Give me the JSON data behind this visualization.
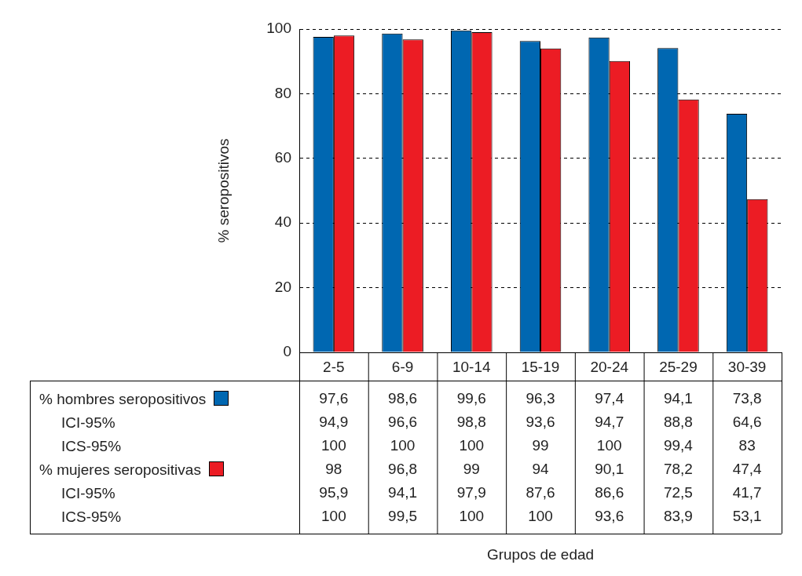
{
  "chart_data": {
    "type": "bar",
    "ylabel": "% seropositivos",
    "categories": [
      "2-5",
      "6-9",
      "10-14",
      "15-19",
      "20-24",
      "25-29",
      "30-39"
    ],
    "series": [
      {
        "name": "% hombres seropositivos",
        "color": "#0067b1",
        "values": [
          97.6,
          98.6,
          99.6,
          96.3,
          97.4,
          94.1,
          73.8
        ],
        "value_labels": [
          "97,6",
          "98,6",
          "99,6",
          "96,3",
          "97,4",
          "94,1",
          "73,8"
        ]
      },
      {
        "name": "% mujeres seropositivas",
        "color": "#ec1c24",
        "values": [
          98,
          96.8,
          99,
          94,
          90.1,
          78.2,
          47.4
        ],
        "value_labels": [
          "98",
          "96,8",
          "99",
          "94",
          "90,1",
          "78,2",
          "47,4"
        ]
      }
    ],
    "annotations": [
      "ICI-95%",
      "94,9",
      "96,6",
      "98,8",
      "93,6",
      "94,7",
      "88,8",
      "64,6",
      "ICS-95%",
      "100",
      "100",
      "100",
      "99",
      "100",
      "99,4",
      "83",
      "ICI-95%",
      "95,9",
      "94,1",
      "97,9",
      "87,6",
      "86,6",
      "72,5",
      "41,7",
      "ICS-95%",
      "100",
      "99,5",
      "100",
      "100",
      "93,6",
      "83,9",
      "53,1",
      "Grupos de edad"
    ],
    "ylim": [
      0,
      100
    ],
    "yticks": [
      0,
      20,
      40,
      60,
      80,
      100
    ],
    "grid": "y",
    "legend": "bottom left"
  }
}
